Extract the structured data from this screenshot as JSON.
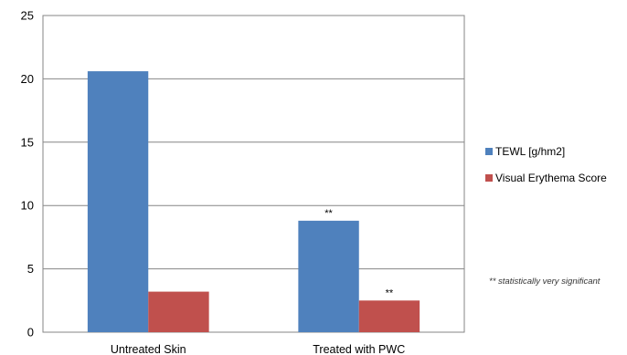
{
  "chart_data": {
    "type": "bar",
    "categories": [
      "Untreated  Skin",
      "Treated with PWC"
    ],
    "series": [
      {
        "name": "TEWL [g/hm2]",
        "values": [
          20.6,
          8.8
        ],
        "color": "#4f81bd",
        "annotations": [
          "",
          "**"
        ]
      },
      {
        "name": "Visual Erythema Score",
        "values": [
          3.2,
          2.5
        ],
        "color": "#c0504d",
        "annotations": [
          "",
          "**"
        ]
      }
    ],
    "ylim": [
      0,
      25
    ],
    "yticks": [
      0,
      5,
      10,
      15,
      20,
      25
    ],
    "ytick_labels": [
      "0",
      "5",
      "10",
      "15",
      "20",
      "25"
    ],
    "grid": true,
    "legend_position": "right",
    "footnote": "** statistically very significant",
    "xlabel": "",
    "ylabel": ""
  }
}
